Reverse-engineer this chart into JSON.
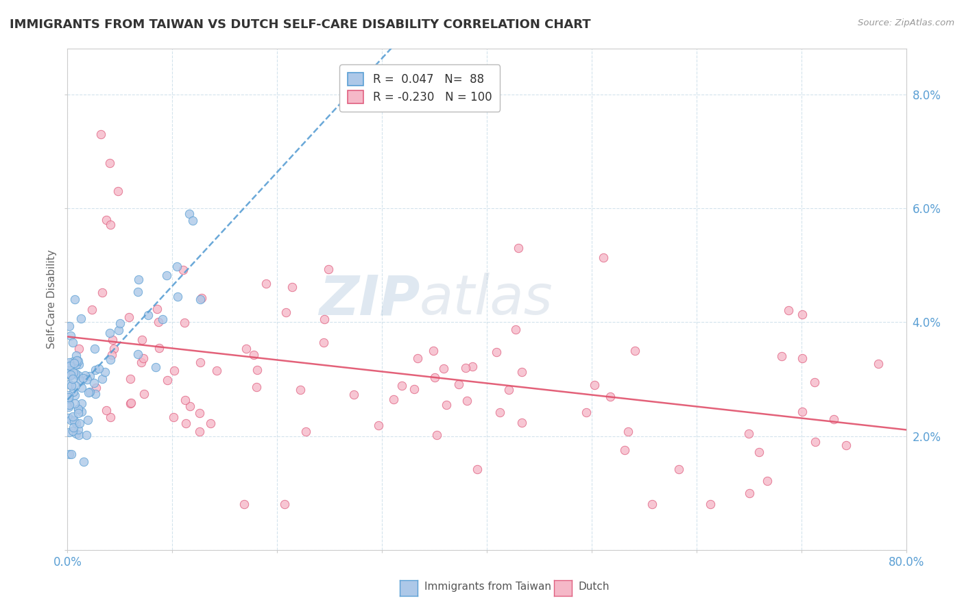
{
  "title": "IMMIGRANTS FROM TAIWAN VS DUTCH SELF-CARE DISABILITY CORRELATION CHART",
  "source": "Source: ZipAtlas.com",
  "ylabel": "Self-Care Disability",
  "xlim": [
    0,
    0.8
  ],
  "ylim": [
    0,
    0.088
  ],
  "xtick_positions": [
    0.0,
    0.1,
    0.2,
    0.3,
    0.4,
    0.5,
    0.6,
    0.7,
    0.8
  ],
  "xtick_labels": [
    "0.0%",
    "",
    "",
    "",
    "",
    "",
    "",
    "",
    "80.0%"
  ],
  "ytick_positions": [
    0.0,
    0.02,
    0.04,
    0.06,
    0.08
  ],
  "ytick_labels": [
    "",
    "2.0%",
    "4.0%",
    "6.0%",
    "8.0%"
  ],
  "blue_fill": "#adc8e8",
  "blue_edge": "#5a9fd4",
  "pink_fill": "#f5b8c8",
  "pink_edge": "#e06080",
  "blue_line": "#5a9fd4",
  "pink_line": "#e0506a",
  "tick_color": "#5a9fd4",
  "grid_color": "#c8dce8",
  "watermark_color": "#c8dce8",
  "background": "#ffffff",
  "title_color": "#333333",
  "source_color": "#999999",
  "ylabel_color": "#666666"
}
